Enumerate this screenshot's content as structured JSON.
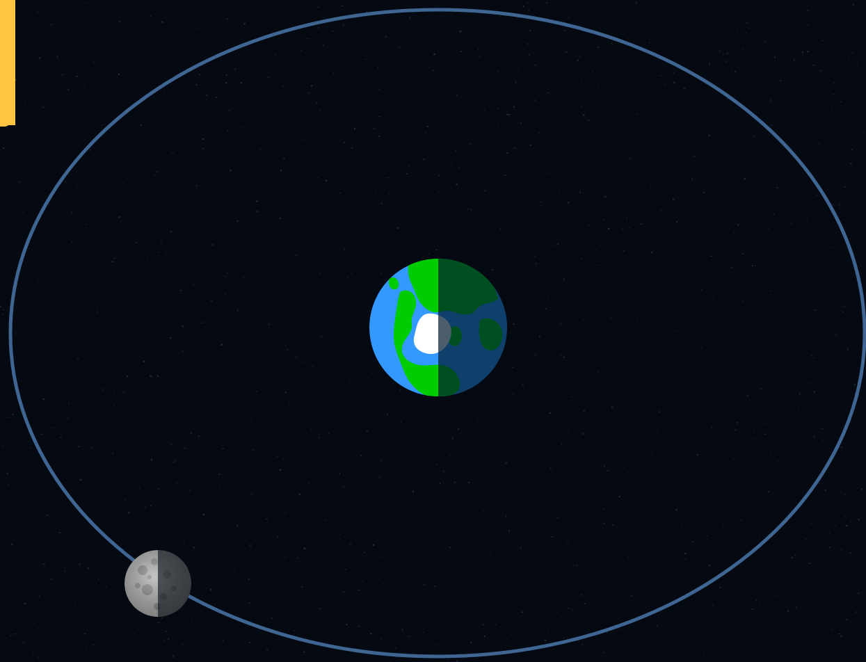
{
  "scene": {
    "background_color": "#050a12",
    "star_color": "#6f8190",
    "orbit_color": "#3f6592",
    "sun": {
      "icon": "sun-icon",
      "color": "#fec442"
    },
    "earth": {
      "icon": "earth-icon",
      "ocean_color": "#3399ff",
      "land_color": "#00cc00",
      "ice_color": "#ffffff",
      "night_shade_color": "#001a2e"
    },
    "moon": {
      "icon": "moon-icon",
      "surface_color": "#a8a8a8",
      "crater_color": "#6f6f6f",
      "night_shade_color": "#0a0f16"
    }
  }
}
